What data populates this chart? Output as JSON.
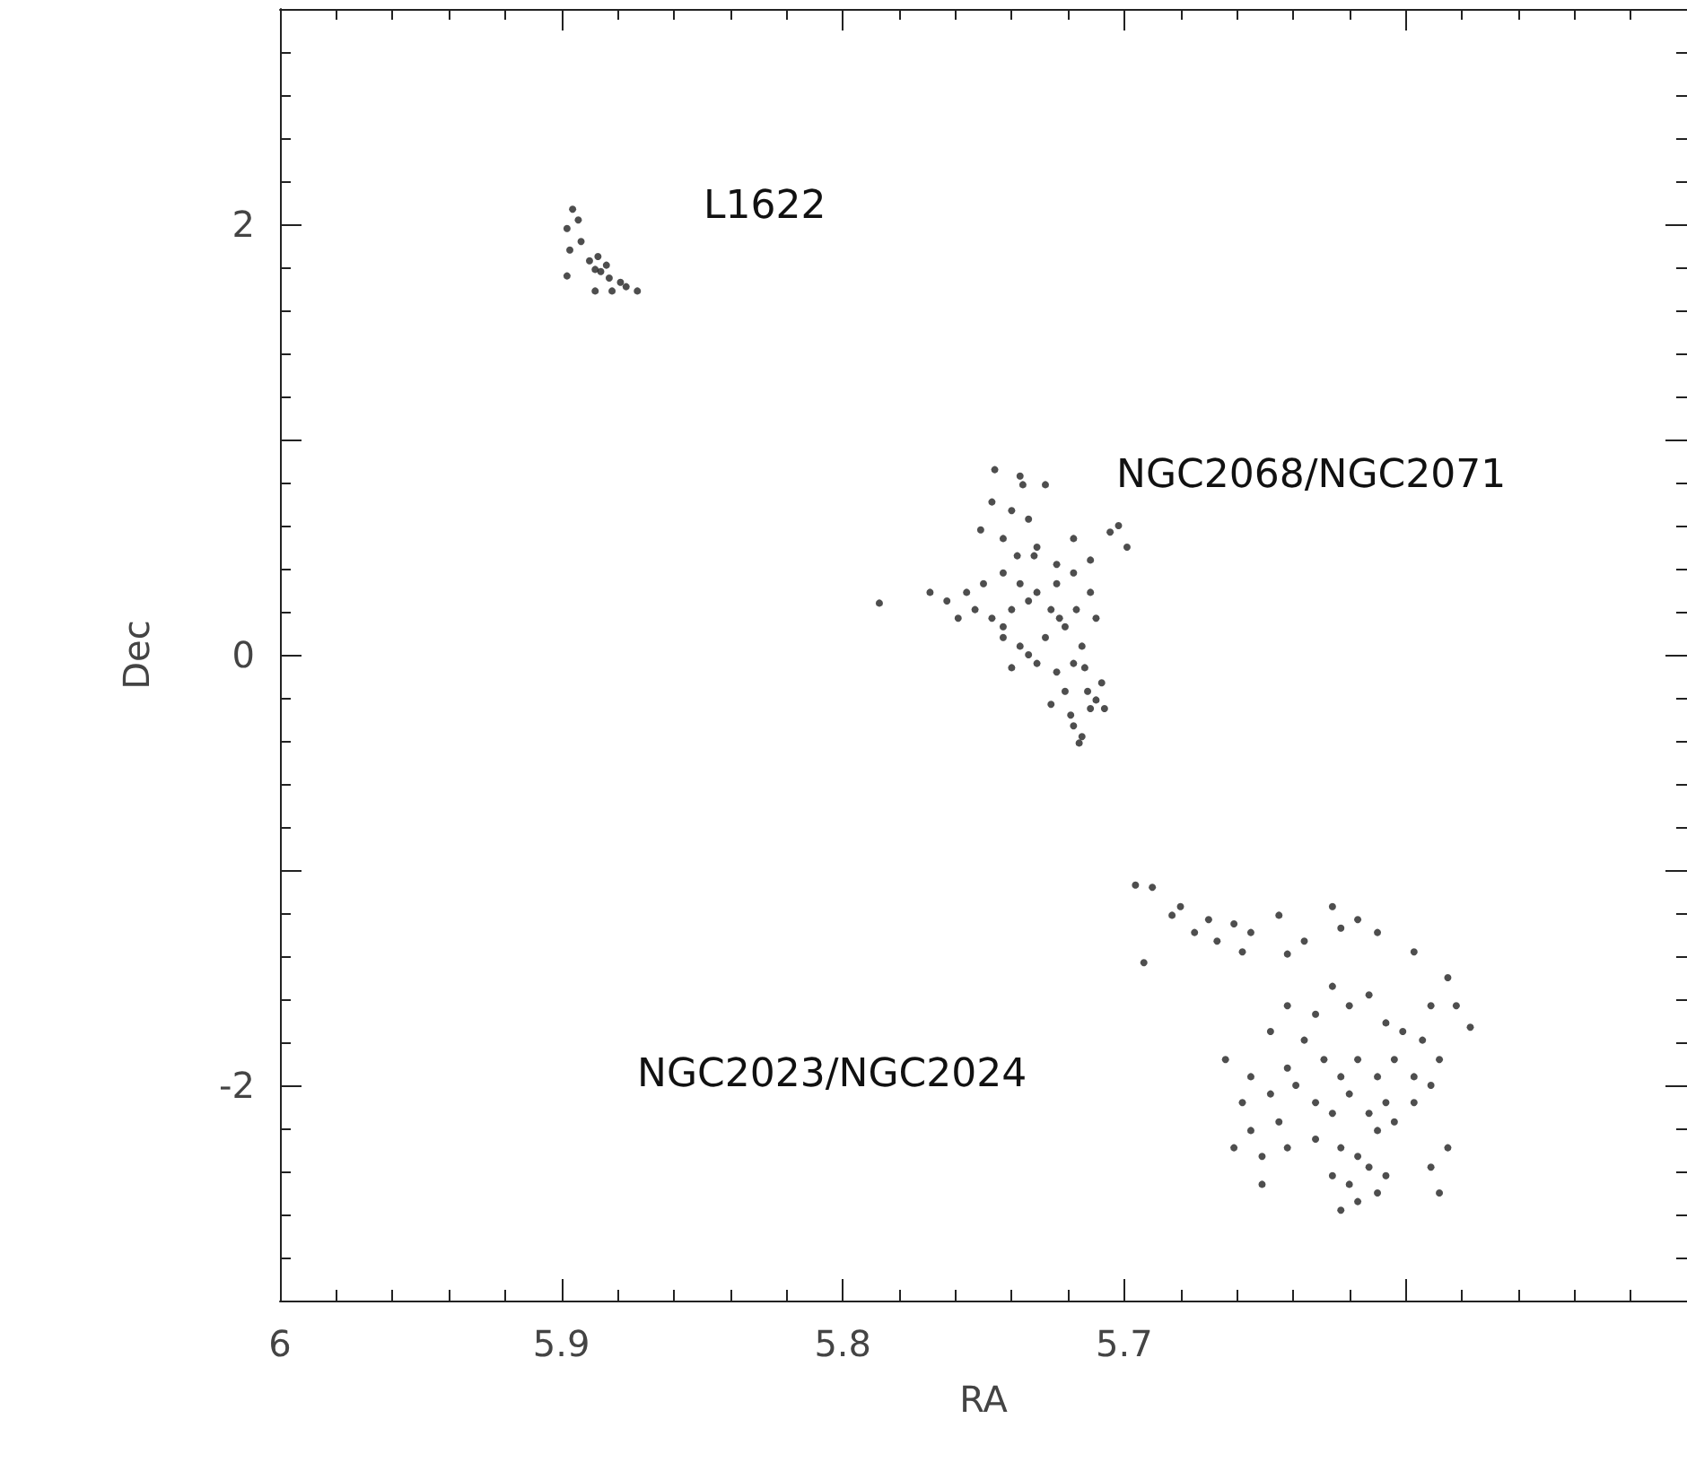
{
  "chart_data": {
    "type": "scatter",
    "xlabel": "RA",
    "ylabel": "Dec",
    "xlim": [
      6,
      5.5
    ],
    "ylim": [
      -3,
      3
    ],
    "xticks": [
      6,
      5.9,
      5.8,
      5.7,
      {
        "value": 5.6,
        "label": null
      }
    ],
    "yticks": [
      -2,
      {
        "value": -1,
        "label": null
      },
      0,
      {
        "value": 1,
        "label": null
      },
      2
    ],
    "grid": false,
    "marker": "circle",
    "annotations": [
      "L1622",
      "NGC2068/NGC2071",
      "NGC2023/NGC2024"
    ],
    "series": [
      {
        "color": "#222222",
        "x": [
          5.898,
          5.896,
          5.894,
          5.897,
          5.893,
          5.89,
          5.887,
          5.884,
          5.886,
          5.898,
          5.883,
          5.879,
          5.877,
          5.873,
          5.882,
          5.888,
          5.888,
          5.787,
          5.746,
          5.737,
          5.728,
          5.747,
          5.74,
          5.734,
          5.743,
          5.738,
          5.731,
          5.724,
          5.718,
          5.705,
          5.699,
          5.702,
          5.712,
          5.756,
          5.75,
          5.743,
          5.737,
          5.731,
          5.724,
          5.718,
          5.712,
          5.753,
          5.747,
          5.74,
          5.734,
          5.769,
          5.763,
          5.723,
          5.743,
          5.737,
          5.728,
          5.721,
          5.718,
          5.724,
          5.731,
          5.715,
          5.713,
          5.71,
          5.708,
          5.712,
          5.707,
          5.715,
          5.718,
          5.743,
          5.734,
          5.74,
          5.721,
          5.732,
          5.751,
          5.736,
          5.726,
          5.717,
          5.759,
          5.71,
          5.726,
          5.719,
          5.714,
          5.716,
          5.696,
          5.69,
          5.68,
          5.67,
          5.661,
          5.655,
          5.645,
          5.626,
          5.617,
          5.693,
          5.683,
          5.675,
          5.667,
          5.658,
          5.642,
          5.636,
          5.623,
          5.61,
          5.597,
          5.585,
          5.591,
          5.582,
          5.577,
          5.648,
          5.642,
          5.632,
          5.626,
          5.62,
          5.613,
          5.607,
          5.601,
          5.594,
          5.588,
          5.629,
          5.623,
          5.617,
          5.61,
          5.604,
          5.597,
          5.655,
          5.648,
          5.639,
          5.632,
          5.626,
          5.62,
          5.613,
          5.607,
          5.655,
          5.645,
          5.661,
          5.651,
          5.642,
          5.632,
          5.623,
          5.617,
          5.61,
          5.604,
          5.626,
          5.62,
          5.613,
          5.607,
          5.617,
          5.61,
          5.623,
          5.651,
          5.585,
          5.591,
          5.588,
          5.636,
          5.664,
          5.642,
          5.597,
          5.591,
          5.658
        ],
        "values": [
          1.98,
          2.07,
          2.02,
          1.88,
          1.92,
          1.83,
          1.85,
          1.81,
          1.78,
          1.76,
          1.75,
          1.73,
          1.71,
          1.69,
          1.69,
          1.69,
          1.79,
          0.24,
          0.86,
          0.83,
          0.79,
          0.71,
          0.67,
          0.63,
          0.54,
          0.46,
          0.5,
          0.42,
          0.54,
          0.57,
          0.5,
          0.6,
          0.44,
          0.29,
          0.33,
          0.38,
          0.33,
          0.29,
          0.33,
          0.38,
          0.29,
          0.21,
          0.17,
          0.21,
          0.25,
          0.29,
          0.25,
          0.17,
          0.08,
          0.04,
          0.08,
          0.13,
          -0.04,
          -0.08,
          -0.04,
          0.04,
          -0.17,
          -0.21,
          -0.13,
          -0.25,
          -0.25,
          -0.38,
          -0.33,
          0.13,
          0.0,
          -0.06,
          -0.17,
          0.46,
          0.58,
          0.79,
          0.21,
          0.21,
          0.17,
          0.17,
          -0.23,
          -0.28,
          -0.06,
          -0.41,
          -1.07,
          -1.08,
          -1.17,
          -1.23,
          -1.25,
          -1.29,
          -1.21,
          -1.17,
          -1.23,
          -1.43,
          -1.21,
          -1.29,
          -1.33,
          -1.38,
          -1.39,
          -1.33,
          -1.27,
          -1.29,
          -1.38,
          -1.5,
          -1.63,
          -1.63,
          -1.73,
          -1.75,
          -1.63,
          -1.67,
          -1.54,
          -1.63,
          -1.58,
          -1.71,
          -1.75,
          -1.79,
          -1.88,
          -1.88,
          -1.96,
          -1.88,
          -1.96,
          -1.88,
          -1.96,
          -1.96,
          -2.04,
          -2.0,
          -2.08,
          -2.13,
          -2.04,
          -2.13,
          -2.08,
          -2.21,
          -2.17,
          -2.29,
          -2.33,
          -2.29,
          -2.25,
          -2.29,
          -2.33,
          -2.21,
          -2.17,
          -2.42,
          -2.46,
          -2.38,
          -2.42,
          -2.54,
          -2.5,
          -2.58,
          -2.46,
          -2.29,
          -2.38,
          -2.5,
          -1.79,
          -1.88,
          -1.92,
          -2.08,
          -2.0,
          -2.08
        ]
      }
    ]
  }
}
